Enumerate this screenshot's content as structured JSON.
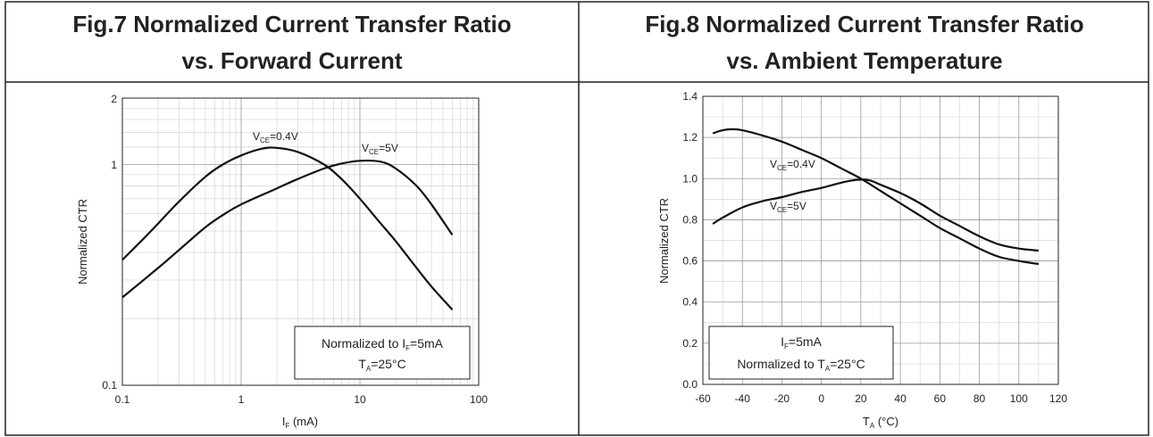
{
  "layout": {
    "border_color": "#222222",
    "grid_major_color": "#9a9a9a",
    "grid_minor_color": "#d6d6d6",
    "curve_color": "#111111"
  },
  "fig7": {
    "title_line1": "Fig.7 Normalized Current Transfer Ratio",
    "title_line2": "vs. Forward Current",
    "ylabel": "Normalized CTR",
    "xlabel_main": "I",
    "xlabel_sub": "F",
    "xlabel_unit": " (mA)",
    "xticks": [
      "0.1",
      "1",
      "10",
      "100"
    ],
    "yticks": [
      "0.1",
      "1",
      "2"
    ],
    "label_vce04_main": "V",
    "label_vce04_sub": "CE",
    "label_vce04_val": "=0.4V",
    "label_vce5_main": "V",
    "label_vce5_sub": "CE",
    "label_vce5_val": "=5V",
    "note_line1_pre": "Normalized to I",
    "note_line1_sub": "F",
    "note_line1_post": "=5mA",
    "note_line2_pre": "T",
    "note_line2_sub": "A",
    "note_line2_post": "=25°C"
  },
  "fig8": {
    "title_line1": "Fig.8 Normalized Current Transfer Ratio",
    "title_line2": "vs. Ambient Temperature",
    "ylabel": "Normalized CTR",
    "xlabel_main": "T",
    "xlabel_sub": "A",
    "xlabel_unit": " (°C)",
    "xticks": [
      "-60",
      "-40",
      "-20",
      "0",
      "20",
      "40",
      "60",
      "80",
      "100",
      "120"
    ],
    "yticks": [
      "0.0",
      "0.2",
      "0.4",
      "0.6",
      "0.8",
      "1.0",
      "1.2",
      "1.4"
    ],
    "label_vce04_main": "V",
    "label_vce04_sub": "CE",
    "label_vce04_val": "=0.4V",
    "label_vce5_main": "V",
    "label_vce5_sub": "CE",
    "label_vce5_val": "=5V",
    "note_line1_pre": "I",
    "note_line1_sub": "F",
    "note_line1_post": "=5mA",
    "note_line2_pre": "Normalized to T",
    "note_line2_sub": "A",
    "note_line2_post": "=25°C"
  },
  "chart_data": [
    {
      "type": "line",
      "title": "Fig.7 Normalized Current Transfer Ratio vs. Forward Current",
      "xlabel": "IF (mA)",
      "ylabel": "Normalized CTR",
      "xscale": "log",
      "yscale": "log",
      "xlim": [
        0.1,
        100
      ],
      "ylim": [
        0.1,
        2
      ],
      "grid": true,
      "series": [
        {
          "name": "VCE=0.4V",
          "x": [
            0.1,
            0.15,
            0.2,
            0.3,
            0.5,
            0.7,
            1,
            1.5,
            2,
            3,
            5,
            7,
            10,
            15,
            20,
            30,
            40,
            60
          ],
          "y": [
            0.37,
            0.46,
            0.54,
            0.68,
            0.88,
            1.0,
            1.1,
            1.18,
            1.19,
            1.14,
            1.0,
            0.86,
            0.7,
            0.54,
            0.45,
            0.34,
            0.28,
            0.22
          ]
        },
        {
          "name": "VCE=5V",
          "x": [
            0.1,
            0.2,
            0.3,
            0.5,
            0.7,
            1,
            2,
            3,
            5,
            7,
            10,
            15,
            20,
            30,
            40,
            60
          ],
          "y": [
            0.25,
            0.34,
            0.41,
            0.52,
            0.59,
            0.66,
            0.78,
            0.86,
            0.96,
            1.01,
            1.04,
            1.03,
            0.96,
            0.8,
            0.66,
            0.48
          ]
        }
      ]
    },
    {
      "type": "line",
      "title": "Fig.8 Normalized Current Transfer Ratio vs. Ambient Temperature",
      "xlabel": "TA (°C)",
      "ylabel": "Normalized CTR",
      "xlim": [
        -60,
        120
      ],
      "ylim": [
        0.0,
        1.4
      ],
      "grid": true,
      "series": [
        {
          "name": "VCE=0.4V",
          "x": [
            -55,
            -50,
            -45,
            -40,
            -30,
            -20,
            -10,
            0,
            10,
            20,
            30,
            40,
            50,
            60,
            70,
            80,
            90,
            100,
            110
          ],
          "y": [
            1.22,
            1.235,
            1.24,
            1.235,
            1.21,
            1.18,
            1.14,
            1.1,
            1.05,
            1.0,
            0.94,
            0.88,
            0.82,
            0.76,
            0.71,
            0.66,
            0.62,
            0.6,
            0.585
          ]
        },
        {
          "name": "VCE=5V",
          "x": [
            -55,
            -50,
            -40,
            -30,
            -20,
            -10,
            0,
            10,
            15,
            20,
            25,
            30,
            40,
            50,
            60,
            70,
            80,
            90,
            100,
            110
          ],
          "y": [
            0.78,
            0.81,
            0.86,
            0.89,
            0.91,
            0.935,
            0.955,
            0.98,
            0.99,
            0.995,
            0.99,
            0.97,
            0.93,
            0.88,
            0.82,
            0.77,
            0.72,
            0.68,
            0.66,
            0.65
          ]
        }
      ]
    }
  ]
}
